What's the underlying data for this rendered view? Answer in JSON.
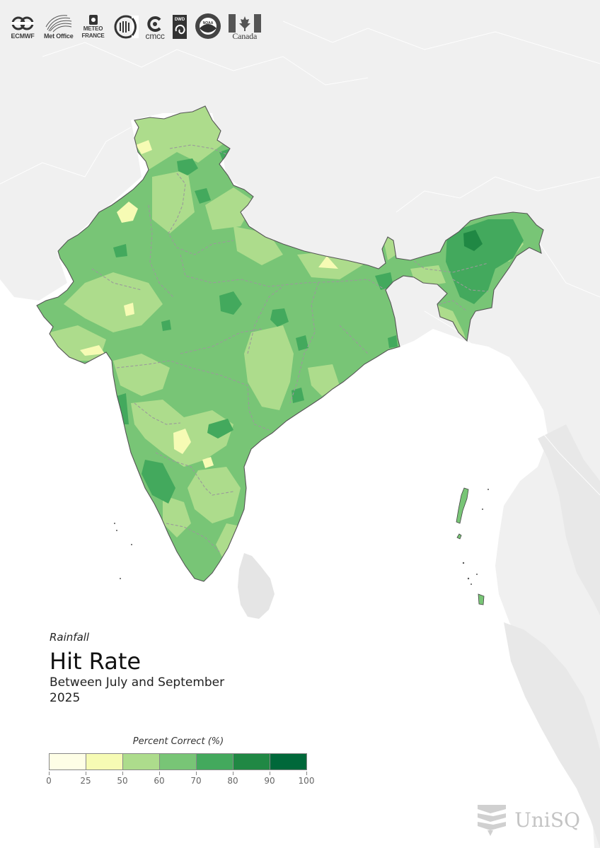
{
  "header": {
    "logos": [
      {
        "name": "ECMWF",
        "icon": "ecmwf-logo"
      },
      {
        "name": "Met Office",
        "icon": "met-office-logo"
      },
      {
        "name": "METEO FRANCE",
        "icon": "meteo-france-logo"
      },
      {
        "name": "",
        "icon": "jma-logo"
      },
      {
        "name": "cmcc",
        "icon": "cmcc-logo"
      },
      {
        "name": "DWD",
        "icon": "dwd-logo"
      },
      {
        "name": "NOAA",
        "icon": "noaa-logo"
      },
      {
        "name": "Canada",
        "icon": "canada-logo"
      }
    ]
  },
  "map": {
    "variable": "Rainfall",
    "metric": "Hit Rate",
    "period_line1": "Between July and September",
    "period_line2": "2025"
  },
  "legend": {
    "title": "Percent Correct (%)",
    "ticks": [
      "0",
      "25",
      "50",
      "60",
      "70",
      "80",
      "90",
      "100"
    ],
    "bins": [
      {
        "range": "0-25",
        "color": "#fefee6"
      },
      {
        "range": "25-50",
        "color": "#f6fbb4"
      },
      {
        "range": "50-60",
        "color": "#addc8c"
      },
      {
        "range": "60-70",
        "color": "#78c576"
      },
      {
        "range": "70-80",
        "color": "#43a95d"
      },
      {
        "range": "80-90",
        "color": "#208844"
      },
      {
        "range": "90-100",
        "color": "#00683a"
      }
    ]
  },
  "colors": {
    "land_background": "#f0f0f0",
    "ocean": "#ffffff",
    "boundary": "#555555",
    "state_boundary": "#9a9a9a"
  },
  "footer": {
    "brand": "UniSQ"
  }
}
